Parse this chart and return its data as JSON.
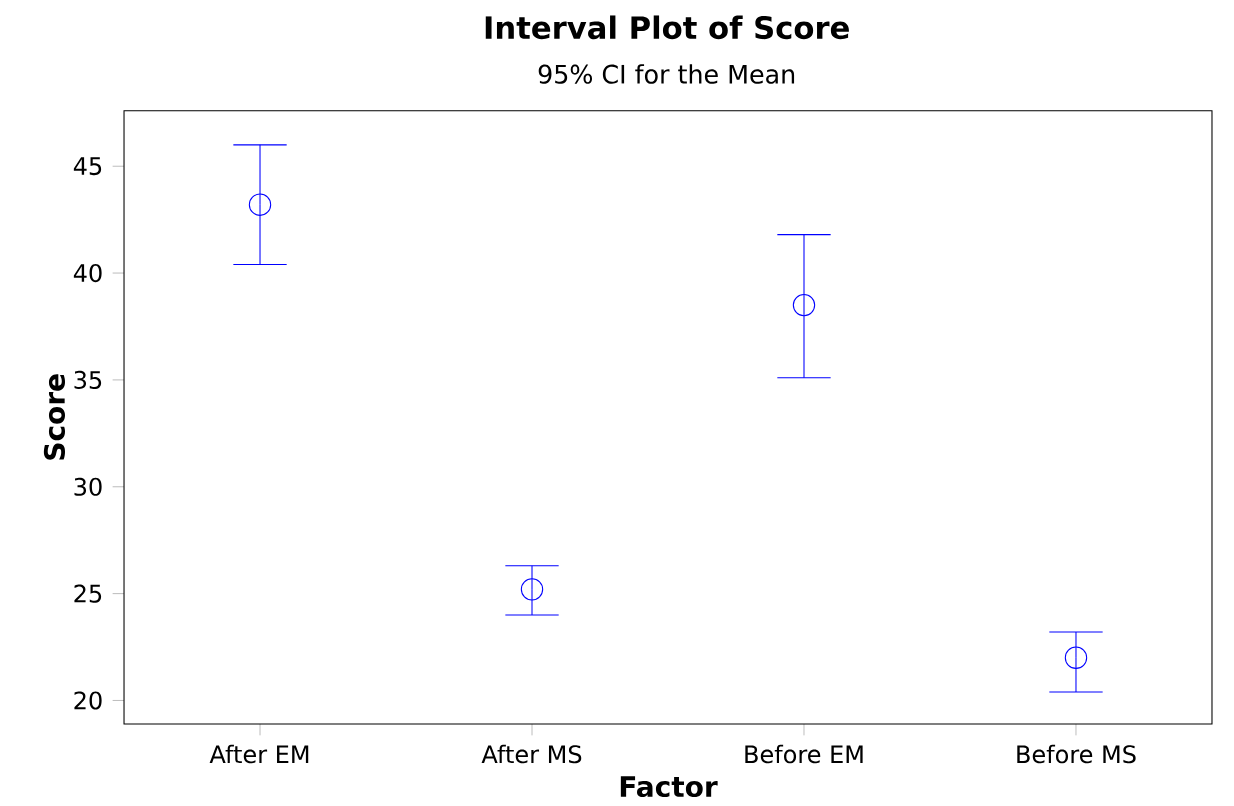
{
  "chart_data": {
    "type": "scatter",
    "title": "Interval Plot of Score",
    "subtitle": "95% CI for the Mean",
    "xlabel": "Factor",
    "ylabel": "Score",
    "categories": [
      "After EM",
      "After MS",
      "Before EM",
      "Before MS"
    ],
    "values": [
      43.2,
      25.2,
      38.5,
      22.0
    ],
    "errors": [
      [
        40.4,
        46.0
      ],
      [
        24.0,
        26.3
      ],
      [
        35.1,
        41.8
      ],
      [
        20.4,
        23.2
      ]
    ],
    "color": "#0000ff",
    "marker": "circle",
    "ylim": [
      18.9,
      47.6
    ],
    "yticks": [
      20,
      25,
      30,
      35,
      40,
      45
    ],
    "grid": false
  }
}
